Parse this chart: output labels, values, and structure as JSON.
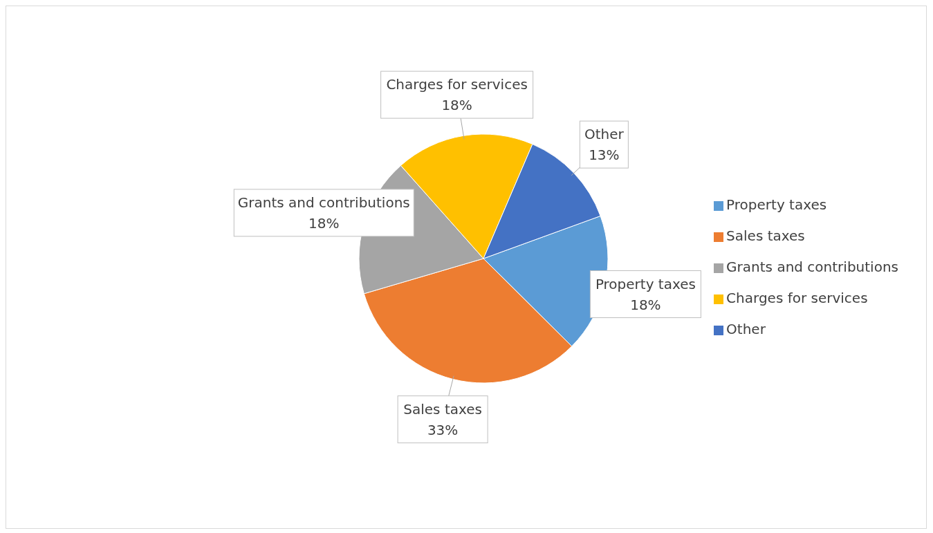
{
  "chart_data": {
    "type": "pie",
    "categories": [
      "Property taxes",
      "Sales taxes",
      "Grants and contributions",
      "Charges for services",
      "Other"
    ],
    "values": [
      18,
      33,
      18,
      18,
      13
    ],
    "colors": [
      "#5b9bd5",
      "#ed7d31",
      "#a5a5a5",
      "#ffc000",
      "#4472c4"
    ],
    "value_labels": [
      "18%",
      "33%",
      "18%",
      "18%",
      "13%"
    ],
    "legend": "right"
  }
}
